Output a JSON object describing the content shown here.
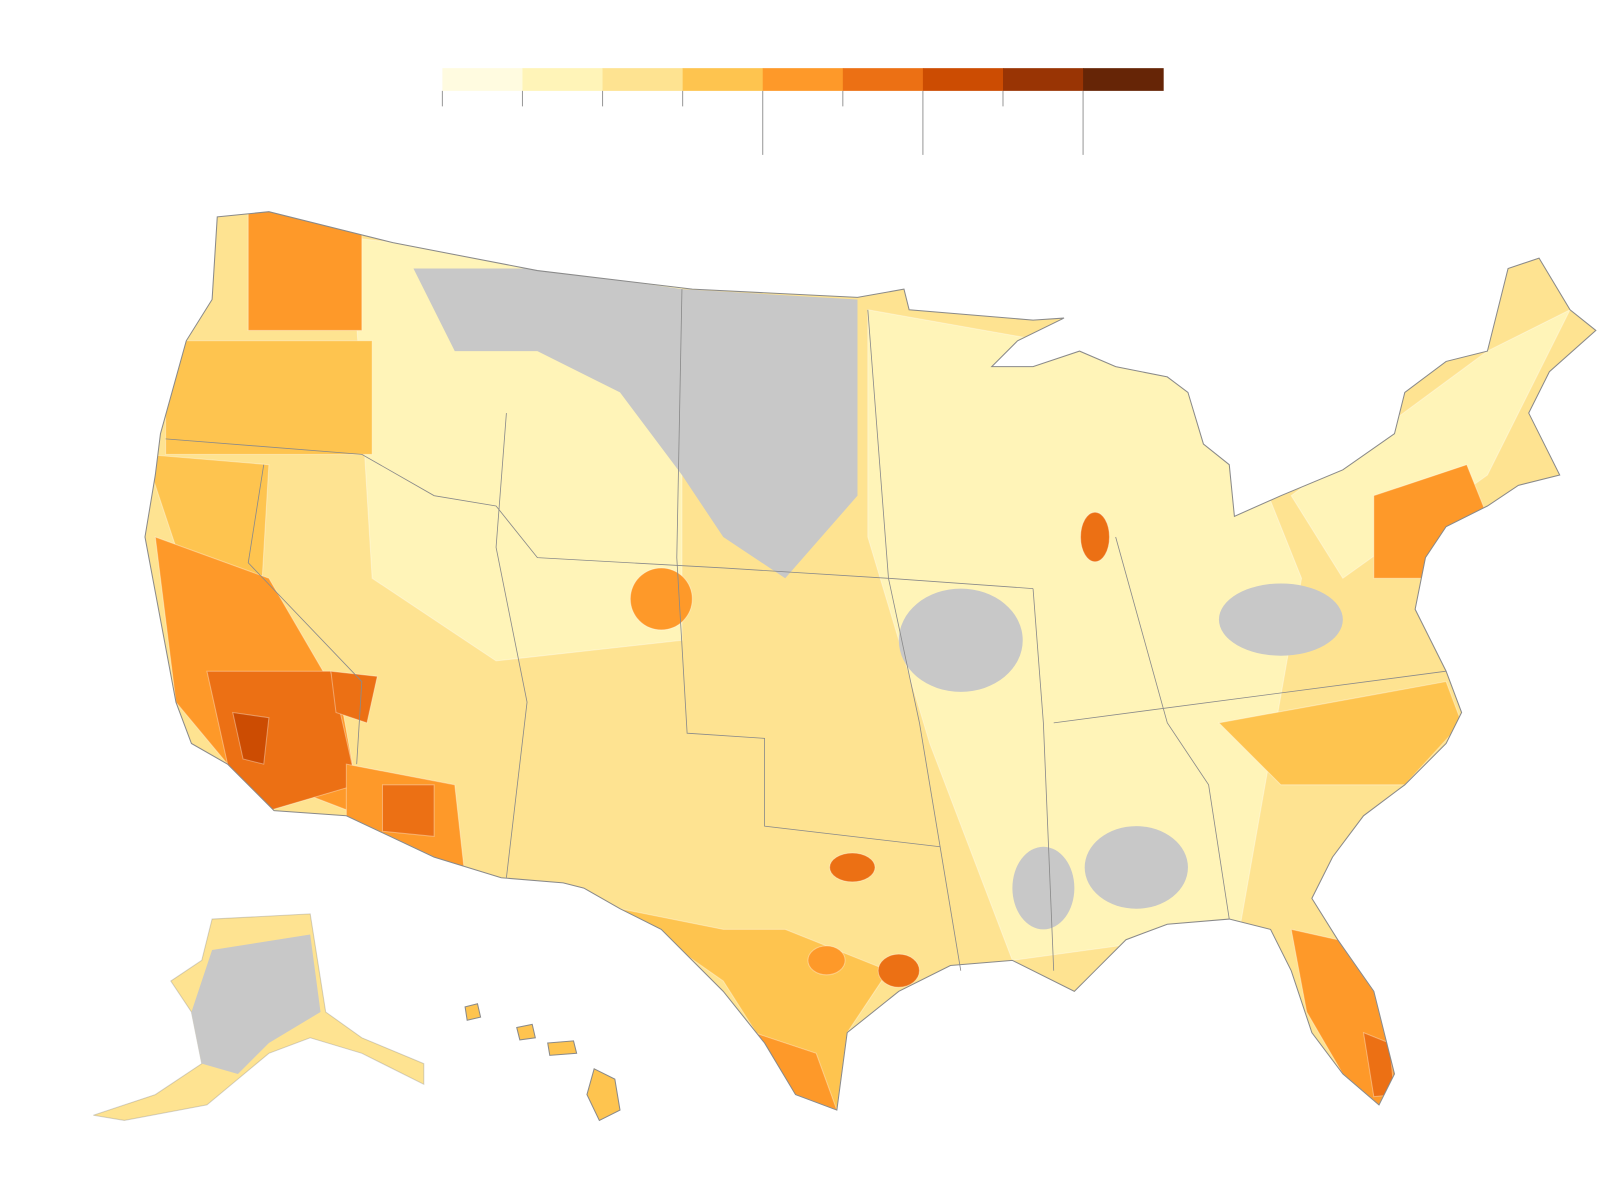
{
  "legend": {
    "colors": [
      "#fffbe0",
      "#fff4b8",
      "#fee391",
      "#fec44f",
      "#fe9929",
      "#ec7014",
      "#cc4c02",
      "#993404",
      "#662506"
    ]
  },
  "map": {
    "no_data_color": "#c8c8c8",
    "border_color": "#8a8a8a"
  }
}
